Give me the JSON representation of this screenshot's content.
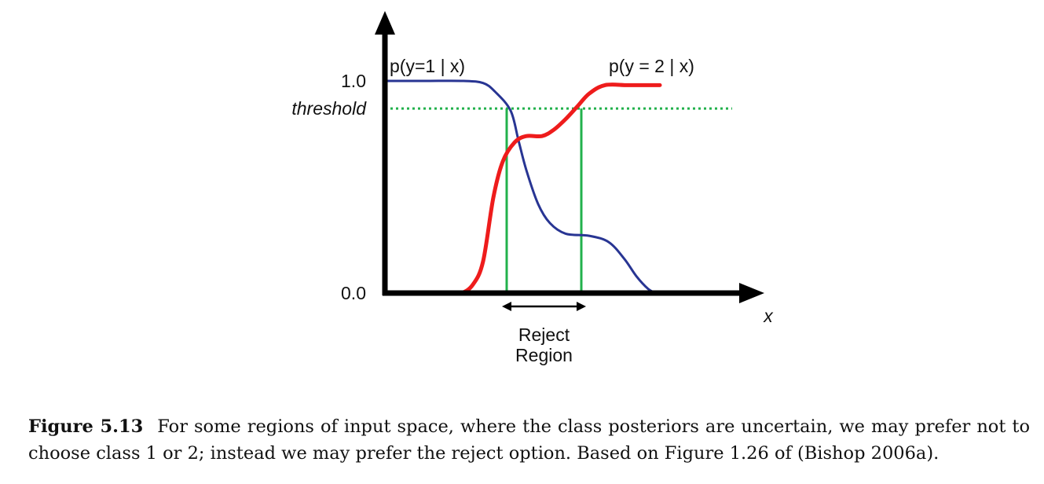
{
  "chart_data": {
    "type": "line",
    "xlabel": "x",
    "ylim": [
      0,
      1
    ],
    "yticks": [
      {
        "value": 0.0,
        "label": "0.0"
      },
      {
        "value": 1.0,
        "label": "1.0"
      }
    ],
    "threshold": {
      "value": 0.87,
      "label": "threshold",
      "color": "#22b14c"
    },
    "series": [
      {
        "name": "p(y=1 | x)",
        "color": "#283593",
        "points": [
          [
            0,
            1.0
          ],
          [
            0.5,
            1.0
          ],
          [
            1.0,
            1.0
          ],
          [
            1.25,
            0.99
          ],
          [
            1.4,
            0.95
          ],
          [
            1.6,
            0.86
          ],
          [
            1.7,
            0.72
          ],
          [
            1.8,
            0.58
          ],
          [
            1.95,
            0.42
          ],
          [
            2.1,
            0.33
          ],
          [
            2.3,
            0.28
          ],
          [
            2.6,
            0.27
          ],
          [
            2.85,
            0.24
          ],
          [
            3.05,
            0.16
          ],
          [
            3.2,
            0.08
          ],
          [
            3.35,
            0.02
          ],
          [
            3.45,
            0.0
          ]
        ]
      },
      {
        "name": "p(y = 2 | x)",
        "color": "#ee1c1c",
        "points": [
          [
            0.8,
            0.0
          ],
          [
            0.97,
            0.0
          ],
          [
            1.12,
            0.04
          ],
          [
            1.25,
            0.15
          ],
          [
            1.38,
            0.45
          ],
          [
            1.5,
            0.62
          ],
          [
            1.65,
            0.71
          ],
          [
            1.8,
            0.74
          ],
          [
            2.0,
            0.74
          ],
          [
            2.15,
            0.77
          ],
          [
            2.3,
            0.82
          ],
          [
            2.45,
            0.88
          ],
          [
            2.6,
            0.94
          ],
          [
            2.8,
            0.98
          ],
          [
            3.1,
            0.98
          ],
          [
            3.5,
            0.98
          ]
        ]
      }
    ],
    "reject_region": {
      "x_start": 1.55,
      "x_end": 2.5,
      "label_line1": "Reject",
      "label_line2": "Region",
      "boundary_color": "#22b14c"
    }
  },
  "caption": {
    "label": "Figure 5.13",
    "text": "For some regions of input space, where the class posteriors are uncertain, we may prefer not to choose class 1 or 2; instead we may prefer the reject option. Based on Figure 1.26 of (Bishop 2006a)."
  }
}
